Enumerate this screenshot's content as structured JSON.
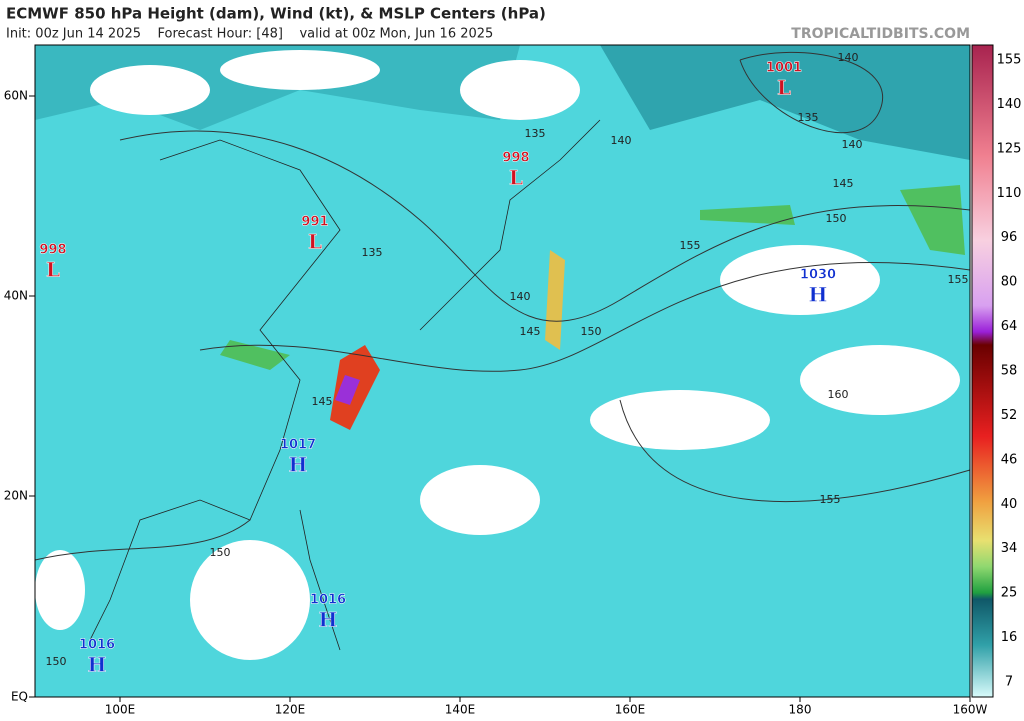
{
  "header": {
    "title": "ECMWF 850 hPa Height (dam), Wind (kt), & MSLP Centers (hPa)",
    "subtitle": "Init: 00z Jun 14 2025    Forecast Hour: [48]    valid at 00z Mon, Jun 16 2025",
    "credit": "TROPICALTIDBITS.COM"
  },
  "axes": {
    "lat_labels": [
      "60N",
      "40N",
      "20N",
      "EQ"
    ],
    "lon_labels": [
      "100E",
      "120E",
      "140E",
      "160E",
      "180",
      "160W"
    ]
  },
  "colorbar": {
    "labels": [
      155,
      140,
      125,
      110,
      96,
      80,
      64,
      58,
      52,
      46,
      40,
      34,
      25,
      16,
      7
    ]
  },
  "centers": [
    {
      "kind": "L",
      "pressure": 1001
    },
    {
      "kind": "L",
      "pressure": 998
    },
    {
      "kind": "L",
      "pressure": 991
    },
    {
      "kind": "L",
      "pressure": 998
    },
    {
      "kind": "H",
      "pressure": 1030
    },
    {
      "kind": "H",
      "pressure": 1017
    },
    {
      "kind": "H",
      "pressure": 1016
    },
    {
      "kind": "H",
      "pressure": 1016
    }
  ],
  "contour_labels": [
    140,
    135,
    140,
    145,
    150,
    155,
    135,
    140,
    135,
    140,
    145,
    150,
    160,
    155,
    150,
    150,
    155,
    145
  ]
}
